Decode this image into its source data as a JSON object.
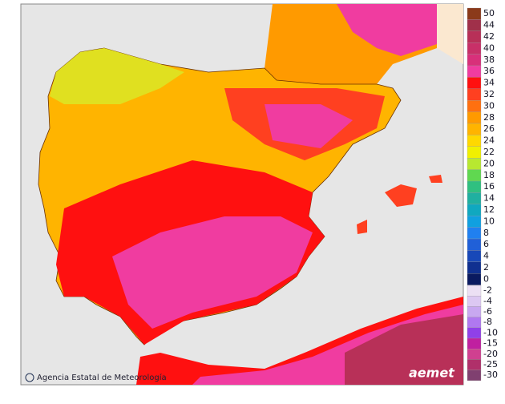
{
  "legend": {
    "items": [
      {
        "value": 50,
        "color": "#8b3a1a"
      },
      {
        "value": 44,
        "color": "#a0304a"
      },
      {
        "value": 42,
        "color": "#b83058"
      },
      {
        "value": 40,
        "color": "#c83068"
      },
      {
        "value": 38,
        "color": "#d8307a"
      },
      {
        "value": 36,
        "color": "#f03ca0"
      },
      {
        "value": 34,
        "color": "#ff1010"
      },
      {
        "value": 32,
        "color": "#ff4020"
      },
      {
        "value": 30,
        "color": "#ff7010"
      },
      {
        "value": 28,
        "color": "#ff9a00"
      },
      {
        "value": 26,
        "color": "#ffb400"
      },
      {
        "value": 24,
        "color": "#ffd800"
      },
      {
        "value": 22,
        "color": "#f0f000"
      },
      {
        "value": 20,
        "color": "#b8e830"
      },
      {
        "value": 18,
        "color": "#60d850"
      },
      {
        "value": 16,
        "color": "#30c080"
      },
      {
        "value": 14,
        "color": "#20b0a0"
      },
      {
        "value": 12,
        "color": "#10a8c0"
      },
      {
        "value": 10,
        "color": "#10a0e0"
      },
      {
        "value": 8,
        "color": "#2080f0"
      },
      {
        "value": 6,
        "color": "#2060d8"
      },
      {
        "value": 4,
        "color": "#1848b8"
      },
      {
        "value": 2,
        "color": "#103090"
      },
      {
        "value": 0,
        "color": "#0a1a60"
      }
    ],
    "negative_items": [
      {
        "value": -2,
        "color": "#ece0f4"
      },
      {
        "value": -4,
        "color": "#dcc8f2"
      },
      {
        "value": -6,
        "color": "#c8a8f0"
      },
      {
        "value": -8,
        "color": "#b078f0"
      },
      {
        "value": -10,
        "color": "#9040e8"
      },
      {
        "value": -15,
        "color": "#c020a0"
      },
      {
        "value": -20,
        "color": "#d04090"
      },
      {
        "value": -25,
        "color": "#b0306a"
      },
      {
        "value": -30,
        "color": "#804070"
      }
    ]
  },
  "credit": "Agencia Estatal de Meteorología",
  "logo": "aemet"
}
